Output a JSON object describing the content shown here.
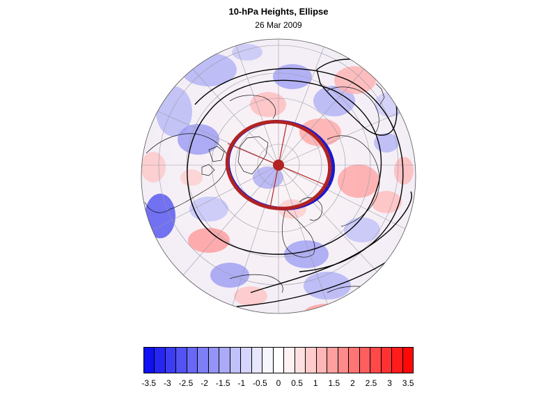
{
  "title": "10-hPa Heights, Ellipse",
  "subtitle": "26 Mar 2009",
  "colorbar": {
    "labels": [
      "-3.5",
      "-3",
      "-2.5",
      "-2",
      "-1.5",
      "-1",
      "-0.5",
      "0",
      "0.5",
      "1",
      "1.5",
      "2",
      "2.5",
      "3",
      "3.5"
    ],
    "colors": [
      "#1010f0",
      "#2626f2",
      "#3c3cf4",
      "#5252f5",
      "#6868f6",
      "#7e7ef7",
      "#9494f8",
      "#aaaaf9",
      "#c0c0fb",
      "#d4d4fc",
      "#e6e6fd",
      "#f6f6ff",
      "#ffffff",
      "#fff2f2",
      "#ffe0e0",
      "#ffcccc",
      "#ffb6b6",
      "#ffa0a0",
      "#ff8a8a",
      "#ff7474",
      "#ff5e5e",
      "#ff4848",
      "#ff3232",
      "#ff1c1c",
      "#ff0808"
    ]
  },
  "map": {
    "projection": "north-polar-stereographic",
    "ellipse_color": "#b22222",
    "ellipse_edge_color": "#1a1acc",
    "contour_color": "#000000"
  }
}
